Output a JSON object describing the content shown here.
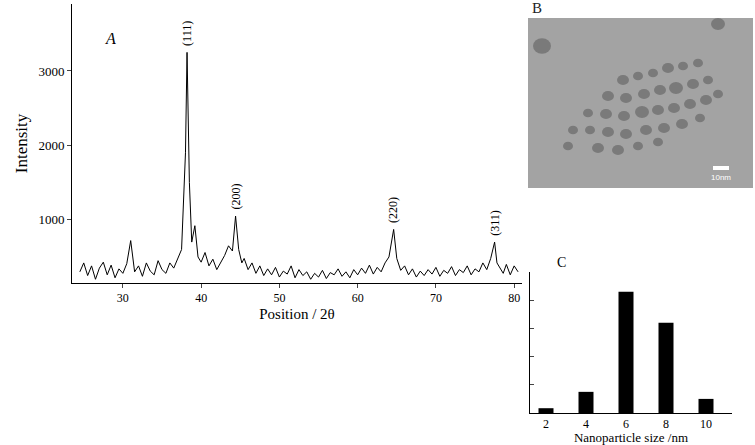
{
  "chart_data": [
    {
      "type": "line",
      "panel": "A",
      "x_label": "Position / 2θ",
      "y_label": "Intensity",
      "color": "#000000",
      "x": [
        24.5,
        25,
        25.5,
        26,
        26.5,
        27,
        27.5,
        28,
        28.5,
        29,
        29.5,
        30,
        30.5,
        31,
        31.5,
        32,
        32.5,
        33,
        33.5,
        34,
        34.5,
        35,
        35.5,
        36,
        36.5,
        37,
        37.5,
        38,
        38.2,
        38.5,
        38.8,
        39.2,
        39.6,
        40,
        40.5,
        41,
        41.5,
        42,
        42.5,
        43,
        43.5,
        44,
        44.4,
        44.8,
        45.2,
        45.5,
        46,
        46.5,
        47,
        47.5,
        48,
        48.5,
        49,
        49.5,
        50,
        50.5,
        51,
        51.5,
        52,
        52.5,
        53,
        53.5,
        54,
        54.5,
        55,
        55.5,
        56,
        56.5,
        57,
        57.5,
        58,
        58.5,
        59,
        59.5,
        60,
        60.5,
        61,
        61.5,
        62,
        62.5,
        63,
        63.5,
        64,
        64.6,
        65,
        65.5,
        66,
        66.5,
        67,
        67.5,
        68,
        68.5,
        69,
        69.5,
        70,
        70.5,
        71,
        71.5,
        72,
        72.5,
        73,
        73.5,
        74,
        74.5,
        75,
        75.5,
        76,
        76.5,
        77,
        77.5,
        77.8,
        78.2,
        78.6,
        79,
        79.5,
        80,
        80.5
      ],
      "values": [
        300,
        420,
        250,
        380,
        200,
        350,
        430,
        260,
        390,
        220,
        340,
        280,
        410,
        720,
        300,
        380,
        240,
        420,
        310,
        260,
        450,
        330,
        280,
        420,
        350,
        480,
        600,
        1900,
        3250,
        1500,
        700,
        920,
        500,
        430,
        560,
        380,
        470,
        330,
        420,
        520,
        650,
        580,
        1050,
        600,
        420,
        480,
        330,
        420,
        280,
        380,
        250,
        340,
        260,
        360,
        230,
        310,
        270,
        380,
        220,
        330,
        250,
        300,
        200,
        280,
        230,
        320,
        210,
        290,
        260,
        340,
        240,
        300,
        220,
        330,
        260,
        350,
        280,
        390,
        270,
        360,
        300,
        420,
        500,
        870,
        480,
        320,
        380,
        260,
        340,
        230,
        310,
        250,
        330,
        270,
        360,
        240,
        320,
        280,
        370,
        250,
        330,
        290,
        380,
        260,
        340,
        300,
        420,
        330,
        480,
        700,
        420,
        350,
        280,
        400,
        260,
        380,
        300
      ],
      "xlim": [
        23.5,
        81
      ],
      "xticks": [
        30,
        40,
        50,
        60,
        70,
        80
      ],
      "ylim": [
        150,
        3900
      ],
      "yticks": [
        1000,
        2000,
        3000
      ],
      "annotations": [
        {
          "text": "(111)",
          "x": 38.2,
          "y": 3250
        },
        {
          "text": "(200)",
          "x": 44.4,
          "y": 1050
        },
        {
          "text": "(220)",
          "x": 64.6,
          "y": 870
        },
        {
          "text": "(311)",
          "x": 77.5,
          "y": 700
        }
      ]
    },
    {
      "type": "image",
      "panel": "B",
      "scale_bar": "10nm"
    },
    {
      "type": "bar",
      "panel": "C",
      "x_label": "Nanoparticle size /nm",
      "color": "#000000",
      "x": [
        2,
        4,
        6,
        8,
        10
      ],
      "values": [
        1.7,
        7.5,
        43,
        32,
        5
      ],
      "xlim": [
        1.2,
        11.3
      ],
      "xticks": [
        2,
        4,
        6,
        8,
        10
      ],
      "ylim": [
        0,
        50
      ],
      "yticks": [
        10,
        20,
        30,
        40,
        50
      ],
      "tick_labels": "x"
    }
  ]
}
